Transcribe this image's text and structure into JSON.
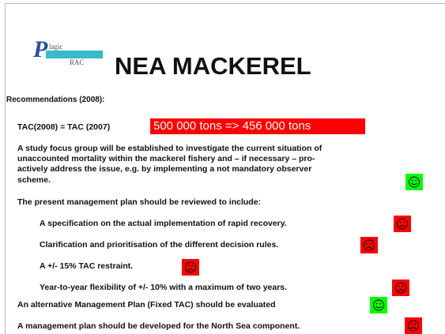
{
  "header": {
    "logo": {
      "letter": "P",
      "word": "lagic",
      "sub": "RAC"
    },
    "title": "NEA MACKEREL"
  },
  "section": "Recommendations (2008):",
  "tac": {
    "text": "TAC(2008) = TAC (2007)",
    "highlight": "500 000 tons => 456 000 tons"
  },
  "study": [
    "A study focus group will be established to investigate the current situation of",
    "unaccounted mortality within the mackerel fishery and – if necessary – pro-",
    "actively address the issue, e.g. by implementing a not mandatory observer",
    "scheme."
  ],
  "plan_intro": "The present management plan should be reviewed to include:",
  "plan_items": [
    "A specification on the actual implementation of rapid recovery.",
    "Clarification and prioritisation of the different decision rules.",
    "A +/- 15% TAC restraint.",
    "Year-to-year flexibility of +/- 10% with a maximum of two years."
  ],
  "others": [
    "An alternative Management Plan (Fixed TAC) should be evaluated",
    "A management plan should be developed for the North Sea component."
  ]
}
